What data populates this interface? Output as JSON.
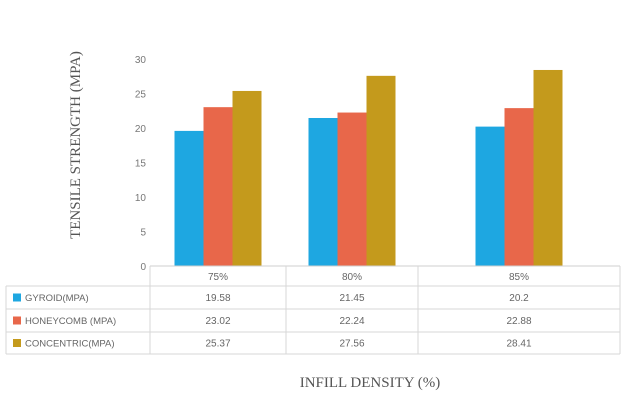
{
  "chart_data": {
    "type": "bar",
    "categories": [
      "75%",
      "80%",
      "85%"
    ],
    "series": [
      {
        "name": "GYROID(MPA)",
        "color": "#1ea7e1",
        "values": [
          19.58,
          21.45,
          20.2
        ]
      },
      {
        "name": "HONEYCOMB (MPA)",
        "color": "#e8674a",
        "values": [
          23.02,
          22.24,
          22.88
        ]
      },
      {
        "name": "CONCENTRIC(MPA)",
        "color": "#c49a1c",
        "values": [
          25.37,
          27.56,
          28.41
        ]
      }
    ],
    "ylabel": "TENSILE STRENGTH (MPA)",
    "xlabel": "INFILL DENSITY (%)",
    "ylim": [
      0,
      30
    ],
    "yticks": [
      "0",
      "5",
      "10",
      "15",
      "20",
      "25",
      "30"
    ],
    "table_values": [
      [
        "19.58",
        "21.45",
        "20.2"
      ],
      [
        "23.02",
        "22.24",
        "22.88"
      ],
      [
        "25.37",
        "27.56",
        "28.41"
      ]
    ],
    "grid": false,
    "legend": "data-table"
  }
}
